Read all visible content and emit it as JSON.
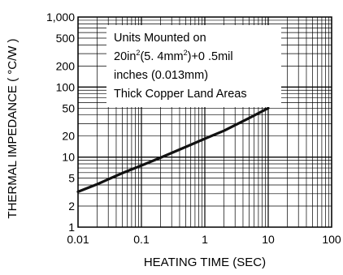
{
  "chart_data": {
    "type": "line",
    "xlabel": "HEATING TIME (SEC)",
    "ylabel": "THERMAL IMPEDANCE ( °C/W )",
    "ylabel_degree": "o",
    "x_scale": "log",
    "y_scale": "log",
    "xlim": [
      0.01,
      100
    ],
    "ylim": [
      1,
      1000
    ],
    "grid": true,
    "x_tick_labels": [
      "0.01",
      "0.1",
      "1",
      "10",
      "100"
    ],
    "y_tick_labels": [
      "1",
      "2",
      "5",
      "10",
      "20",
      "50",
      "100",
      "200",
      "500",
      "1,000"
    ],
    "x_tick_values": [
      0.01,
      0.1,
      1,
      10,
      100
    ],
    "y_tick_values": [
      1,
      2,
      5,
      10,
      20,
      50,
      100,
      200,
      500,
      1000
    ],
    "series": [
      {
        "x": [
          0.01,
          0.02,
          0.05,
          0.1,
          0.2,
          0.5,
          1,
          2,
          5,
          10
        ],
        "y": [
          3.2,
          4.1,
          5.9,
          7.6,
          9.8,
          14.0,
          18.3,
          23.8,
          36.0,
          50.0
        ]
      }
    ],
    "annotation": {
      "line1": "Units Mounted on",
      "line2_a": "20in",
      "line2_sup1": "2",
      "line2_b": "(5. 4mm",
      "line2_sup2": "2",
      "line2_c": ")+0 .5mil",
      "line3": "inches (0.013mm)",
      "line4": "Thick Copper Land Areas"
    },
    "colors": {
      "line": "#111111",
      "grid": "#000000",
      "text": "#000000"
    }
  }
}
